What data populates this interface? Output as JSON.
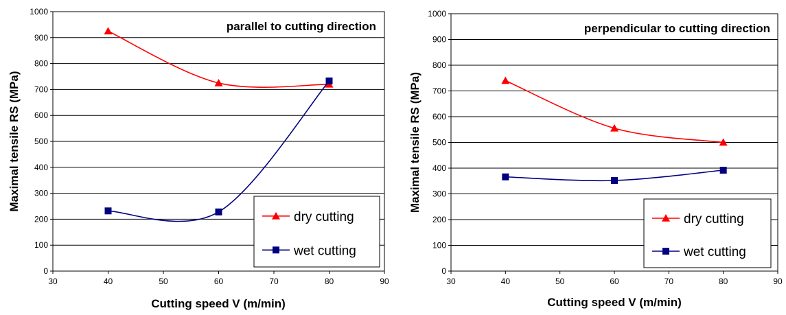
{
  "chart_data": [
    {
      "type": "line",
      "title": "parallel to cutting direction",
      "xlabel": "Cutting speed V (m/min)",
      "ylabel": "Maximal tensile RS (MPa)",
      "xlim": [
        30,
        90
      ],
      "ylim": [
        0,
        1000
      ],
      "xticks": [
        30,
        40,
        50,
        60,
        70,
        80,
        90
      ],
      "yticks": [
        0,
        100,
        200,
        300,
        400,
        500,
        600,
        700,
        800,
        900,
        1000
      ],
      "grid": "horizontal",
      "legend_position": "bottom-right",
      "series": [
        {
          "name": "dry cutting",
          "color": "#ff0000",
          "marker": "triangle",
          "x": [
            40,
            60,
            80
          ],
          "values": [
            925,
            725,
            720
          ]
        },
        {
          "name": "wet cutting",
          "color": "#000080",
          "marker": "square",
          "x": [
            40,
            60,
            80
          ],
          "values": [
            232,
            228,
            733
          ]
        }
      ]
    },
    {
      "type": "line",
      "title": "perpendicular to cutting direction",
      "xlabel": "Cutting speed V (m/min)",
      "ylabel": "Maximal tensile RS (MPa)",
      "xlim": [
        30,
        90
      ],
      "ylim": [
        0,
        1000
      ],
      "xticks": [
        30,
        40,
        50,
        60,
        70,
        80,
        90
      ],
      "yticks": [
        0,
        100,
        200,
        300,
        400,
        500,
        600,
        700,
        800,
        900,
        1000
      ],
      "grid": "horizontal",
      "legend_position": "bottom-right",
      "series": [
        {
          "name": "dry cutting",
          "color": "#ff0000",
          "marker": "triangle",
          "x": [
            40,
            60,
            80
          ],
          "values": [
            740,
            555,
            500
          ]
        },
        {
          "name": "wet cutting",
          "color": "#000080",
          "marker": "square",
          "x": [
            40,
            60,
            80
          ],
          "values": [
            366,
            352,
            392
          ]
        }
      ]
    }
  ]
}
